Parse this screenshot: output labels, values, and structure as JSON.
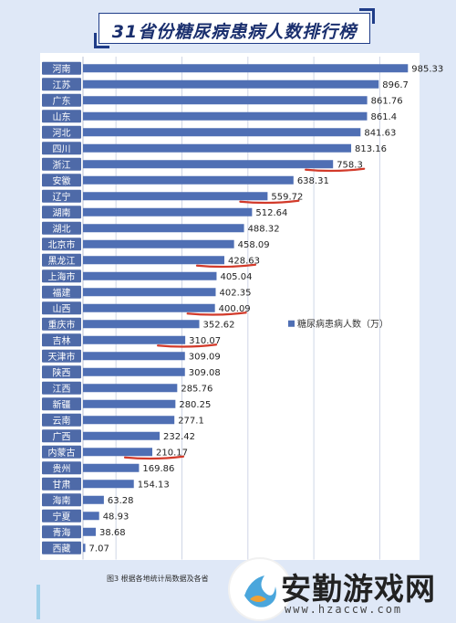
{
  "colors": {
    "background": "#dfe8f7",
    "bar": "#4f6fb4",
    "label_bg": "#4e6aa8",
    "underline": "#d23a2a",
    "title": "#1a2f6e"
  },
  "chart_data": {
    "type": "bar",
    "orientation": "horizontal",
    "title": "31省份糖尿病患病人数排行榜",
    "legend": {
      "label": "糖尿病患病人数（万）",
      "placement": "center-right"
    },
    "grid": true,
    "xlim": [
      0,
      1000
    ],
    "categories": [
      "河南",
      "江苏",
      "广东",
      "山东",
      "河北",
      "四川",
      "浙江",
      "安徽",
      "辽宁",
      "湖南",
      "湖北",
      "北京市",
      "黑龙江",
      "上海市",
      "福建",
      "山西",
      "重庆市",
      "吉林",
      "天津市",
      "陕西",
      "江西",
      "新疆",
      "云南",
      "广西",
      "内蒙古",
      "贵州",
      "甘肃",
      "海南",
      "宁夏",
      "青海",
      "西藏"
    ],
    "values": [
      985.33,
      896.7,
      861.76,
      861.4,
      841.63,
      813.16,
      758.3,
      638.31,
      559.72,
      512.64,
      488.32,
      458.09,
      428.63,
      405.04,
      402.35,
      400.09,
      352.62,
      310.07,
      309.09,
      309.08,
      285.76,
      280.25,
      277.1,
      232.42,
      210.17,
      169.86,
      154.13,
      63.28,
      48.93,
      38.68,
      7.07
    ],
    "value_labels": [
      "985.33",
      "896.7",
      "861.76",
      "861.4",
      "841.63",
      "813.16",
      "758.3",
      "638.31",
      "559.72",
      "512.64",
      "488.32",
      "458.09",
      "428.63",
      "405.04",
      "402.35",
      "400.09",
      "352.62",
      "310.07",
      "309.09",
      "309.08",
      "285.76",
      "280.25",
      "277.1",
      "232.42",
      "210.17",
      "169.86",
      "154.13",
      "63.28",
      "48.93",
      "38.68",
      "7.07"
    ],
    "highlighted": [
      "浙江",
      "辽宁",
      "黑龙江",
      "山西",
      "吉林",
      "内蒙古"
    ]
  },
  "footnote": "图3  根据各地统计局数据及各省",
  "watermark": {
    "brand": "安勤游戏网",
    "url": "www.hzaccw.com"
  }
}
